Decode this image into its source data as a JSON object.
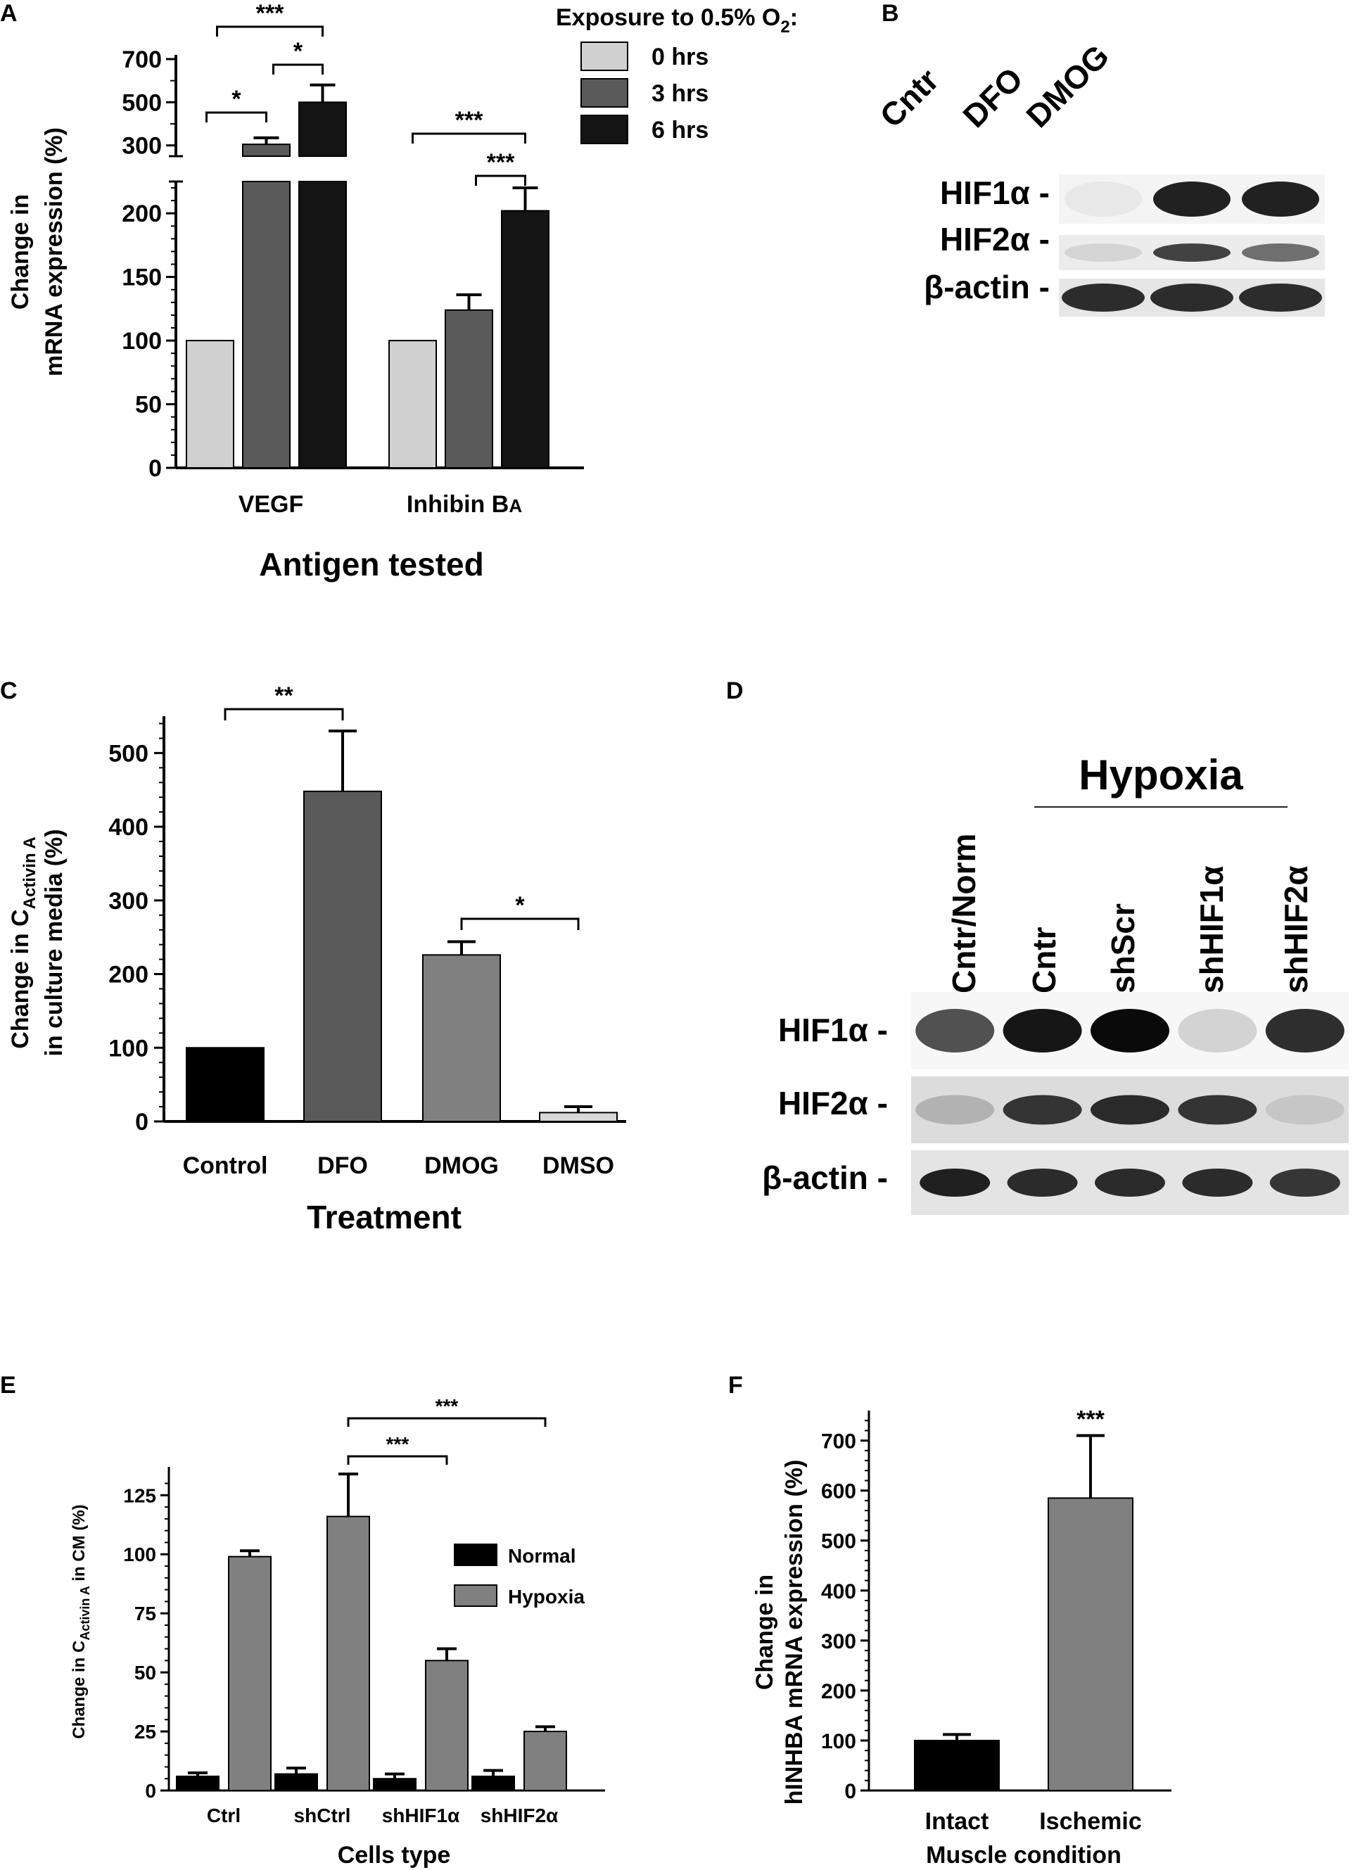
{
  "panels": {
    "A": "A",
    "B": "B",
    "C": "C",
    "D": "D",
    "E": "E",
    "F": "F"
  },
  "colors": {
    "light": "#d0d0d0",
    "mid": "#5a5a5a",
    "dark": "#141414",
    "gray": "#808080",
    "black": "#000000",
    "dmso": "#d8d8d8"
  },
  "chart_data": [
    {
      "panel": "A",
      "type": "bar",
      "categories": [
        "VEGF",
        "Inhibin BA"
      ],
      "category_labels": [
        {
          "main": "VEGF",
          "sub": ""
        },
        {
          "main": "Inhibin B",
          "sub": "A"
        }
      ],
      "series": [
        {
          "name": "0 hrs",
          "values": [
            100,
            100
          ],
          "errors": [
            0,
            0
          ]
        },
        {
          "name": "3 hrs",
          "values": [
            305,
            124
          ],
          "errors": [
            30,
            12
          ]
        },
        {
          "name": "6 hrs",
          "values": [
            500,
            202
          ],
          "errors": [
            80,
            18
          ]
        }
      ],
      "legend_title": "Exposure to 0.5% O",
      "legend_title_sub": "2",
      "legend_title_suffix": ":",
      "xlabel": "Antigen tested",
      "ylabel": [
        "Change in",
        "mRNA expression (%)"
      ],
      "ylim_lower": [
        0,
        225
      ],
      "ylim_upper": [
        250,
        700
      ],
      "yticks_lower": [
        0,
        50,
        100,
        150,
        200
      ],
      "yticks_upper": [
        300,
        500,
        700
      ],
      "significance": [
        {
          "group": 0,
          "from": 0,
          "to": 1,
          "label": "*"
        },
        {
          "group": 0,
          "from": 1,
          "to": 2,
          "label": "*"
        },
        {
          "group": 0,
          "from": 0,
          "to": 2,
          "label": "***"
        },
        {
          "group": 1,
          "from": 1,
          "to": 2,
          "label": "***"
        },
        {
          "group": 1,
          "from": 0,
          "to": 2,
          "label": "***"
        }
      ]
    },
    {
      "panel": "C",
      "type": "bar",
      "categories": [
        "Control",
        "DFO",
        "DMOG",
        "DMSO"
      ],
      "values": [
        100,
        448,
        226,
        12
      ],
      "errors": [
        0,
        82,
        18,
        8
      ],
      "xlabel": "Treatment",
      "ylabel": [
        "Change in C",
        "Activin A",
        "in culture media (%)"
      ],
      "ylim": [
        0,
        550
      ],
      "yticks": [
        0,
        100,
        200,
        300,
        400,
        500
      ],
      "significance": [
        {
          "from": 0,
          "to": 1,
          "label": "**"
        },
        {
          "from": 2,
          "to": 3,
          "label": "*"
        }
      ]
    },
    {
      "panel": "E",
      "type": "bar",
      "categories": [
        "Ctrl",
        "shCtrl",
        "shHIF1α",
        "shHIF2α"
      ],
      "series": [
        {
          "name": "Normal",
          "values": [
            6,
            7,
            5,
            6
          ],
          "errors": [
            1.5,
            2.5,
            2,
            2.5
          ]
        },
        {
          "name": "Hypoxia",
          "values": [
            99,
            116,
            55,
            25
          ],
          "errors": [
            2.5,
            18,
            5,
            2
          ]
        }
      ],
      "xlabel": "Cells type",
      "ylabel": [
        "Change in C",
        "Activin A",
        " in CM (%)"
      ],
      "ylim": [
        0,
        137
      ],
      "yticks": [
        0,
        25,
        50,
        75,
        100,
        125
      ],
      "legend": "top-right",
      "significance": [
        {
          "from": 1,
          "to": 2,
          "label": "***"
        },
        {
          "from": 1,
          "to": 3,
          "label": "***"
        }
      ]
    },
    {
      "panel": "F",
      "type": "bar",
      "categories": [
        "Intact",
        "Ischemic"
      ],
      "values": [
        100,
        585
      ],
      "errors": [
        12,
        125
      ],
      "xlabel": "Muscle condition",
      "ylabel": [
        "Change in",
        "hINHBA mRNA expression (%)"
      ],
      "ylim": [
        0,
        760
      ],
      "yticks": [
        0,
        100,
        200,
        300,
        400,
        500,
        600,
        700
      ],
      "significance": [
        {
          "over": 1,
          "label": "***"
        }
      ]
    }
  ],
  "blot_B": {
    "lanes": [
      "Cntr",
      "DFO",
      "DMOG"
    ],
    "rows": [
      "HIF1α -",
      "HIF2α -",
      "β-actin -"
    ],
    "intensities": [
      [
        0.05,
        0.9,
        0.9
      ],
      [
        0.1,
        0.75,
        0.55
      ],
      [
        0.85,
        0.85,
        0.85
      ]
    ]
  },
  "blot_D": {
    "header": "Hypoxia",
    "lanes": [
      "Cntr/Norm",
      "Cntr",
      "shScr",
      "shHIF1α",
      "shHIF2α"
    ],
    "rows": [
      "HIF1α -",
      "HIF2α -",
      "β-actin -"
    ],
    "intensities": [
      [
        0.7,
        0.95,
        1.0,
        0.15,
        0.85
      ],
      [
        0.2,
        0.8,
        0.85,
        0.8,
        0.1
      ],
      [
        0.9,
        0.85,
        0.85,
        0.85,
        0.8
      ]
    ]
  }
}
